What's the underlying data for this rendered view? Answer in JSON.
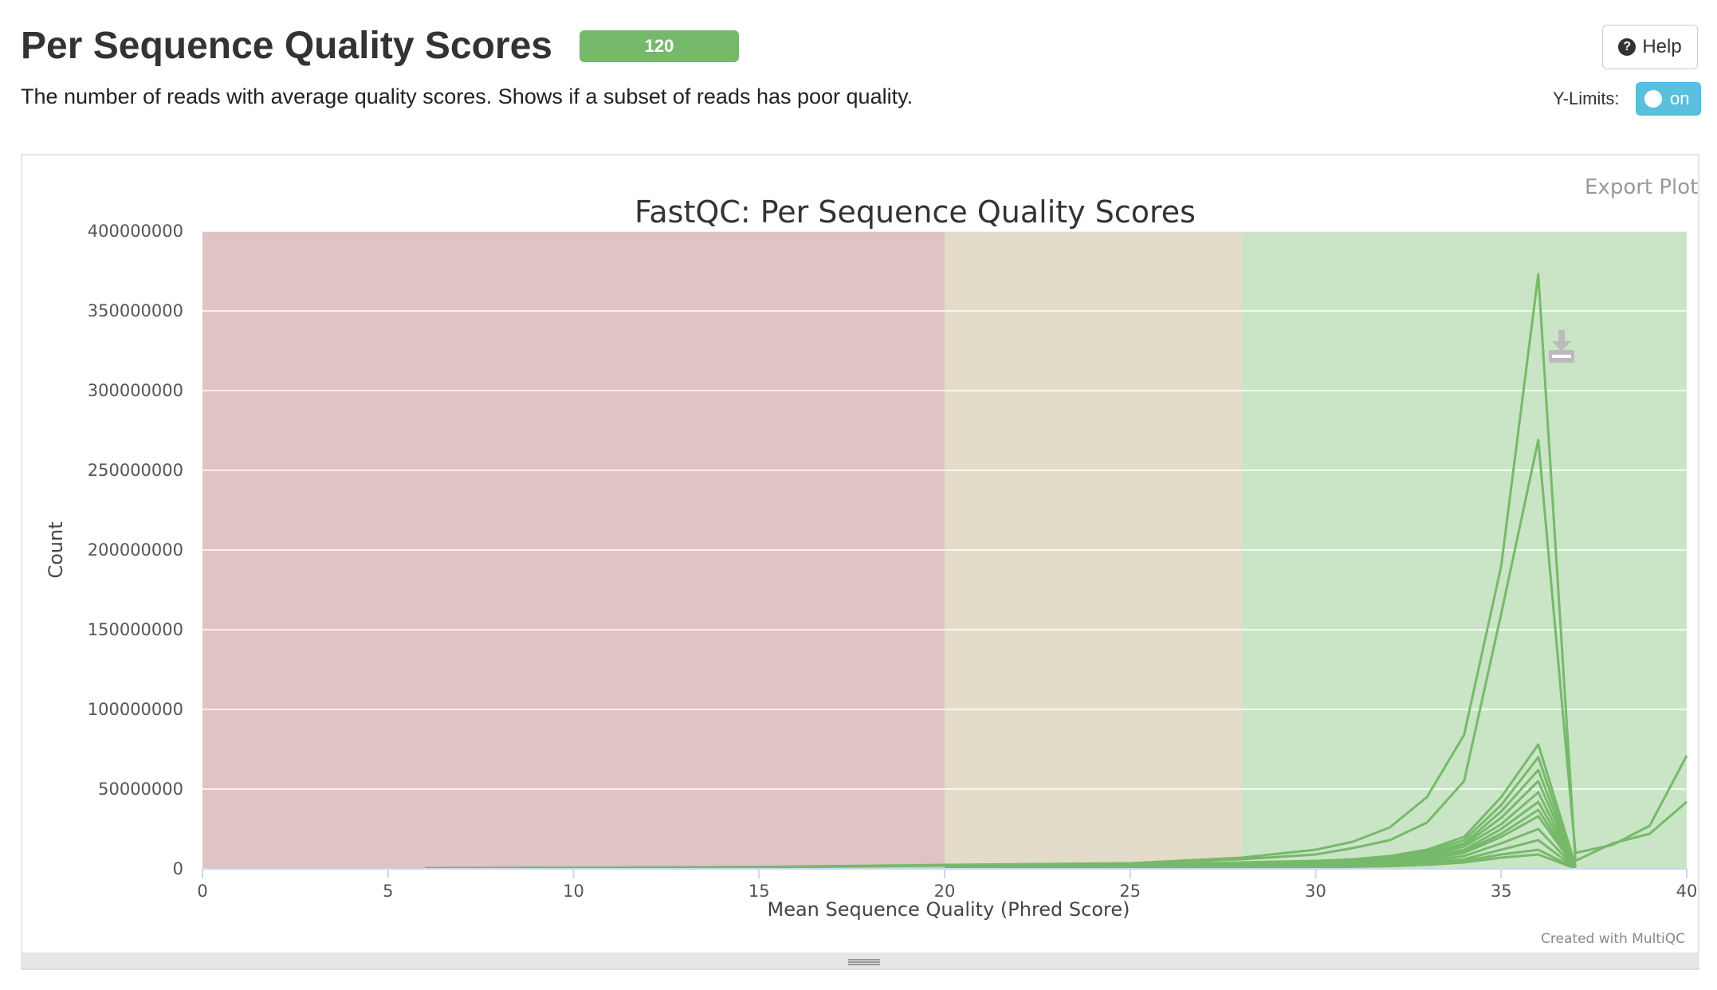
{
  "header": {
    "title": "Per Sequence Quality Scores",
    "badge": "120",
    "description": "The number of reads with average quality scores. Shows if a subset of reads has poor quality.",
    "help_label": "Help",
    "ylimits_label": "Y-Limits:",
    "ylimits_state": "on"
  },
  "plot": {
    "export_label": "Export Plot",
    "credit": "Created with MultiQC"
  },
  "colors": {
    "line": "#77b96a",
    "band_fail": "#e0c3c5",
    "band_warn": "#e3dcc8",
    "band_pass": "#c9e5c6",
    "badge": "#77b96a",
    "toggle": "#5bc0de"
  },
  "icons": {
    "help": "question-circle-icon",
    "export": "download-icon",
    "resize": "drag-handle-icon"
  },
  "chart_data": {
    "type": "line",
    "title": "FastQC: Per Sequence Quality Scores",
    "xlabel": "Mean Sequence Quality (Phred Score)",
    "ylabel": "Count",
    "xlim": [
      0,
      40
    ],
    "ylim": [
      0,
      400000000
    ],
    "xticks": [
      0,
      5,
      10,
      15,
      20,
      25,
      30,
      35,
      40
    ],
    "yticks": [
      0,
      50000000,
      100000000,
      150000000,
      200000000,
      250000000,
      300000000,
      350000000,
      400000000
    ],
    "bands": [
      {
        "from": 0,
        "to": 20,
        "status": "fail"
      },
      {
        "from": 20,
        "to": 28,
        "status": "warn"
      },
      {
        "from": 28,
        "to": 40,
        "status": "pass"
      }
    ],
    "grid": true,
    "legend": "none",
    "series": [
      {
        "x": [
          6,
          10,
          15,
          20,
          25,
          28,
          30,
          31,
          32,
          33,
          34,
          35,
          36,
          37,
          38,
          39,
          40
        ],
        "y": [
          500000,
          700000,
          1200000,
          2500000,
          3500000,
          7000000,
          12000000,
          17000000,
          26000000,
          45000000,
          84000000,
          190000000,
          373000000,
          5000000,
          16000000,
          22000000,
          42000000
        ]
      },
      {
        "x": [
          6,
          10,
          15,
          20,
          25,
          28,
          30,
          31,
          32,
          33,
          34,
          35,
          36,
          37,
          38,
          39,
          40
        ],
        "y": [
          400000,
          600000,
          1000000,
          2000000,
          3000000,
          6000000,
          9000000,
          13000000,
          18000000,
          29000000,
          55000000,
          160000000,
          269000000,
          10000000,
          15000000,
          27000000,
          71000000
        ]
      },
      {
        "x": [
          20,
          25,
          28,
          30,
          31,
          32,
          33,
          34,
          35,
          36,
          37
        ],
        "y": [
          1500000,
          2500000,
          4000000,
          5000000,
          6000000,
          8000000,
          12000000,
          20000000,
          45000000,
          78000000,
          2000000
        ]
      },
      {
        "x": [
          20,
          25,
          28,
          30,
          31,
          32,
          33,
          34,
          35,
          36,
          37
        ],
        "y": [
          1200000,
          2200000,
          3500000,
          4500000,
          5500000,
          7000000,
          11000000,
          18000000,
          40000000,
          70000000,
          1500000
        ]
      },
      {
        "x": [
          20,
          25,
          28,
          30,
          31,
          32,
          33,
          34,
          35,
          36,
          37
        ],
        "y": [
          1000000,
          2000000,
          3000000,
          4000000,
          5000000,
          6500000,
          10000000,
          16000000,
          36000000,
          62000000,
          1200000
        ]
      },
      {
        "x": [
          20,
          25,
          28,
          30,
          31,
          32,
          33,
          34,
          35,
          36,
          37
        ],
        "y": [
          900000,
          1800000,
          2800000,
          3600000,
          4500000,
          6000000,
          9000000,
          15000000,
          32000000,
          55000000,
          1000000
        ]
      },
      {
        "x": [
          20,
          25,
          28,
          30,
          31,
          32,
          33,
          34,
          35,
          36,
          37
        ],
        "y": [
          800000,
          1600000,
          2500000,
          3200000,
          4000000,
          5500000,
          8000000,
          14000000,
          28000000,
          48000000,
          900000
        ]
      },
      {
        "x": [
          20,
          25,
          28,
          30,
          31,
          32,
          33,
          34,
          35,
          36,
          37
        ],
        "y": [
          700000,
          1400000,
          2200000,
          3000000,
          3600000,
          5000000,
          7000000,
          12000000,
          25000000,
          42000000,
          800000
        ]
      },
      {
        "x": [
          20,
          25,
          28,
          30,
          31,
          32,
          33,
          34,
          35,
          36,
          37
        ],
        "y": [
          600000,
          1200000,
          2000000,
          2600000,
          3200000,
          4500000,
          6500000,
          11000000,
          22000000,
          37000000,
          700000
        ]
      },
      {
        "x": [
          20,
          25,
          28,
          30,
          31,
          32,
          33,
          34,
          35,
          36,
          37
        ],
        "y": [
          500000,
          1000000,
          1800000,
          2400000,
          3000000,
          4000000,
          6000000,
          10000000,
          20000000,
          33000000,
          600000
        ]
      },
      {
        "x": [
          20,
          25,
          28,
          30,
          31,
          32,
          33,
          34,
          35,
          36,
          37
        ],
        "y": [
          400000,
          900000,
          1500000,
          2000000,
          2600000,
          3500000,
          5000000,
          8000000,
          16000000,
          25000000,
          500000
        ]
      },
      {
        "x": [
          20,
          25,
          28,
          30,
          31,
          32,
          33,
          34,
          35,
          36,
          37
        ],
        "y": [
          300000,
          700000,
          1200000,
          1600000,
          2000000,
          2800000,
          4000000,
          6000000,
          12000000,
          18000000,
          400000
        ]
      },
      {
        "x": [
          20,
          25,
          28,
          30,
          31,
          32,
          33,
          34,
          35,
          36,
          37
        ],
        "y": [
          250000,
          500000,
          900000,
          1200000,
          1500000,
          2000000,
          3000000,
          5000000,
          9000000,
          12000000,
          300000
        ]
      },
      {
        "x": [
          20,
          25,
          28,
          30,
          31,
          32,
          33,
          34,
          35,
          36,
          37
        ],
        "y": [
          200000,
          400000,
          700000,
          1000000,
          1300000,
          1700000,
          2500000,
          4000000,
          7000000,
          9000000,
          200000
        ]
      }
    ]
  }
}
